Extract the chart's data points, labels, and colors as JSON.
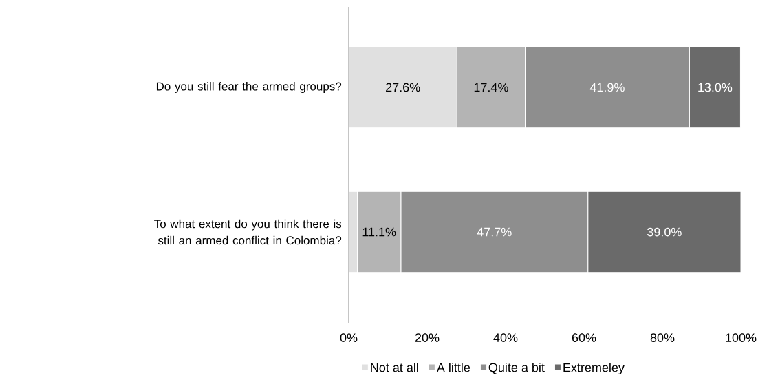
{
  "chart_data": {
    "type": "bar",
    "orientation": "horizontal",
    "stacked": true,
    "categories": [
      "Do you still fear the armed groups?",
      "To what extent do you think there is still an armed conflict in Colombia?"
    ],
    "series": [
      {
        "name": "Not at all",
        "color": "#e0e0e0",
        "values": [
          27.6,
          2.2
        ],
        "value_labels": [
          "27.6%",
          null
        ]
      },
      {
        "name": "A little",
        "color": "#b4b4b4",
        "values": [
          17.4,
          11.1
        ],
        "value_labels": [
          "17.4%",
          "11.1%"
        ]
      },
      {
        "name": "Quite a bit",
        "color": "#8e8e8e",
        "values": [
          41.9,
          47.7
        ],
        "value_labels": [
          "41.9%",
          "47.7%"
        ]
      },
      {
        "name": "Extremeley",
        "color": "#6a6a6a",
        "values": [
          13.0,
          39.0
        ],
        "value_labels": [
          "13.0%",
          "39.0%"
        ]
      }
    ],
    "xlim": [
      0,
      100
    ],
    "xticks": [
      {
        "value": 0,
        "label": "0%"
      },
      {
        "value": 20,
        "label": "20%"
      },
      {
        "value": 40,
        "label": "40%"
      },
      {
        "value": 60,
        "label": "60%"
      },
      {
        "value": 80,
        "label": "80%"
      },
      {
        "value": 100,
        "label": "100%"
      }
    ],
    "grid": false,
    "legend": "bottom"
  }
}
